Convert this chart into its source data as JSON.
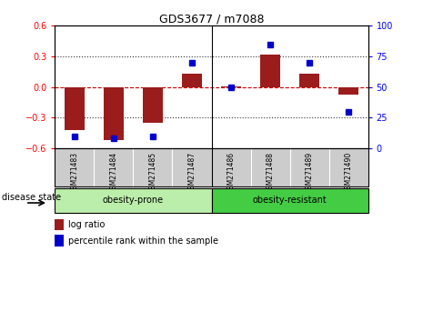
{
  "title": "GDS3677 / m7088",
  "samples": [
    "GSM271483",
    "GSM271484",
    "GSM271485",
    "GSM271487",
    "GSM271486",
    "GSM271488",
    "GSM271489",
    "GSM271490"
  ],
  "log_ratio": [
    -0.42,
    -0.52,
    -0.35,
    0.13,
    0.01,
    0.32,
    0.13,
    -0.07
  ],
  "percentile_rank": [
    10,
    8,
    10,
    70,
    50,
    85,
    70,
    30
  ],
  "ylim_left": [
    -0.6,
    0.6
  ],
  "ylim_right": [
    0,
    100
  ],
  "yticks_left": [
    -0.6,
    -0.3,
    0.0,
    0.3,
    0.6
  ],
  "yticks_right": [
    0,
    25,
    50,
    75,
    100
  ],
  "bar_color": "#9B1C1C",
  "dot_color": "#0000CC",
  "background_color": "#FFFFFF",
  "obesity_prone_color": "#BBEEAA",
  "obesity_resistant_color": "#44CC44",
  "sample_bg_color": "#CCCCCC",
  "disease_state_label": "disease state",
  "legend_log_ratio": "log ratio",
  "legend_percentile": "percentile rank within the sample",
  "zero_line_color": "#CC0000",
  "dotted_line_color": "#333333"
}
